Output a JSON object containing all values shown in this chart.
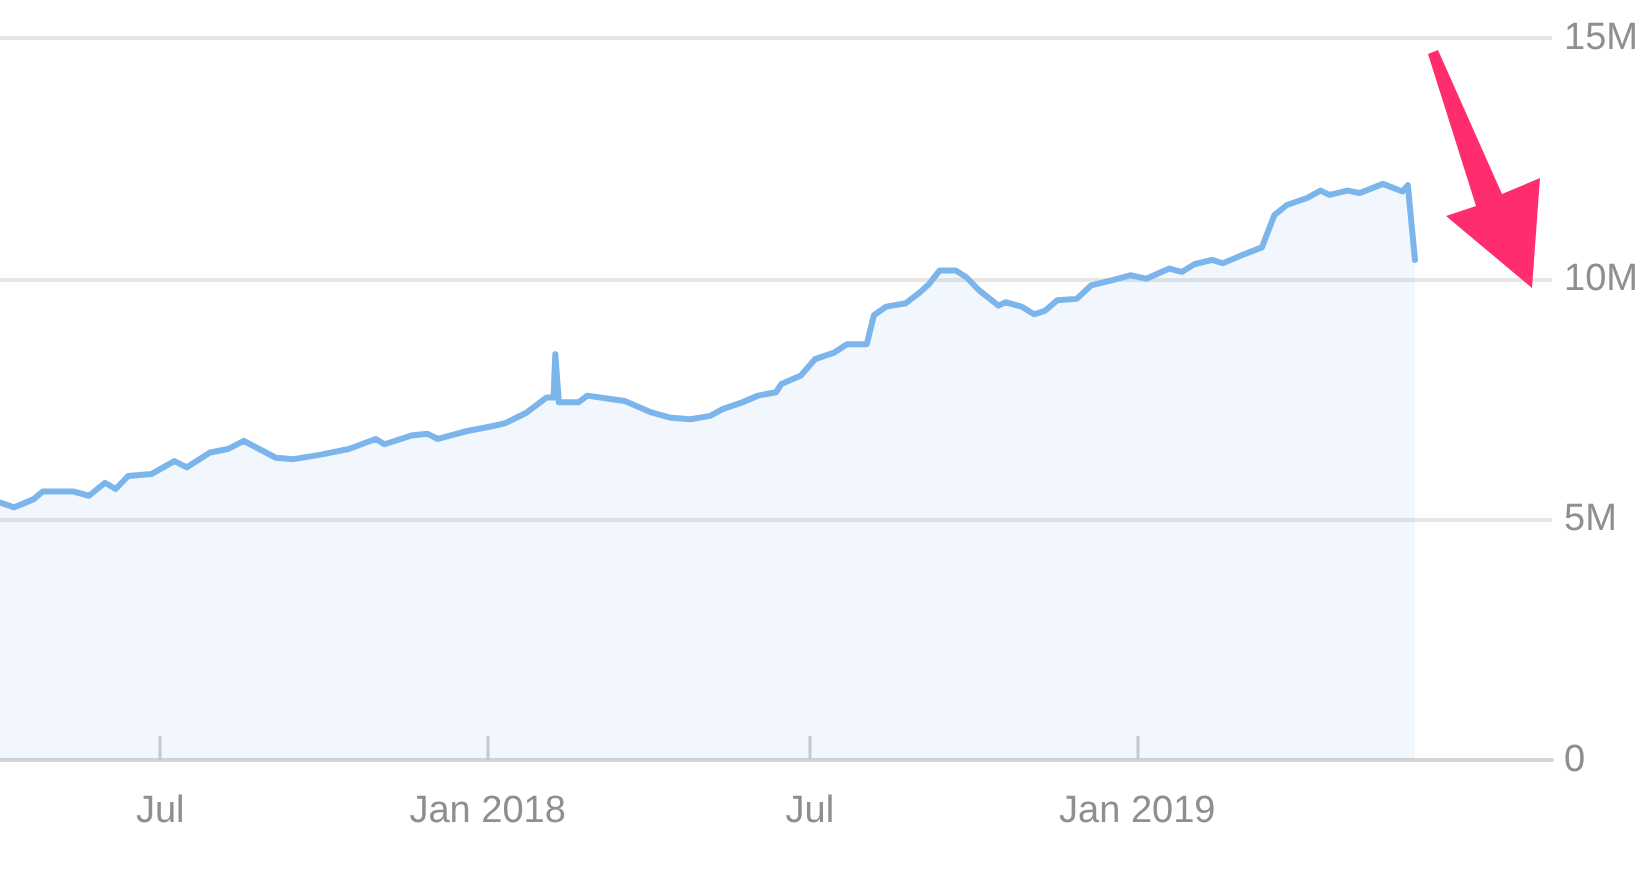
{
  "chart_data": {
    "type": "area",
    "color": "#7cb5ec",
    "marker": "none",
    "grid": "y",
    "x": [
      "2017-04-02",
      "2017-04-10",
      "2017-04-21",
      "2017-04-26",
      "2017-05-13",
      "2017-05-22",
      "2017-05-31",
      "2017-06-06",
      "2017-06-13",
      "2017-06-26",
      "2017-07-09",
      "2017-07-16",
      "2017-07-29",
      "2017-08-08",
      "2017-08-17",
      "2017-08-22",
      "2017-09-04",
      "2017-09-14",
      "2017-09-30",
      "2017-10-15",
      "2017-10-30",
      "2017-11-04",
      "2017-11-19",
      "2017-11-28",
      "2017-12-04",
      "2017-12-20",
      "2018-01-04",
      "2018-01-11",
      "2018-01-23",
      "2018-02-03",
      "2018-02-07",
      "2018-02-08",
      "2018-02-10",
      "2018-02-21",
      "2018-02-26",
      "2018-03-11",
      "2018-03-19",
      "2018-04-03",
      "2018-04-14",
      "2018-04-25",
      "2018-05-06",
      "2018-05-13",
      "2018-05-24",
      "2018-06-02",
      "2018-06-12",
      "2018-06-15",
      "2018-06-26",
      "2018-07-04",
      "2018-07-15",
      "2018-07-22",
      "2018-08-02",
      "2018-08-06",
      "2018-08-13",
      "2018-08-24",
      "2018-09-01",
      "2018-09-06",
      "2018-09-12",
      "2018-09-21",
      "2018-09-27",
      "2018-10-04",
      "2018-10-15",
      "2018-10-19",
      "2018-10-28",
      "2018-11-04",
      "2018-11-10",
      "2018-11-17",
      "2018-11-28",
      "2018-12-06",
      "2018-12-17",
      "2018-12-28",
      "2019-01-06",
      "2019-01-19",
      "2019-01-26",
      "2019-02-02",
      "2019-02-12",
      "2019-02-18",
      "2019-03-01",
      "2019-03-12",
      "2019-03-19",
      "2019-03-26",
      "2019-04-06",
      "2019-04-14",
      "2019-04-19",
      "2019-04-29",
      "2019-05-06",
      "2019-05-19",
      "2019-05-30",
      "2019-06-02",
      "2019-06-06"
    ],
    "values": [
      5350000,
      5250000,
      5420000,
      5580000,
      5580000,
      5490000,
      5760000,
      5630000,
      5900000,
      5940000,
      6210000,
      6080000,
      6390000,
      6460000,
      6630000,
      6530000,
      6280000,
      6250000,
      6350000,
      6460000,
      6670000,
      6560000,
      6740000,
      6780000,
      6670000,
      6830000,
      6940000,
      7000000,
      7220000,
      7530000,
      7530000,
      8430000,
      7430000,
      7430000,
      7570000,
      7500000,
      7460000,
      7220000,
      7110000,
      7080000,
      7150000,
      7290000,
      7430000,
      7570000,
      7640000,
      7810000,
      7990000,
      8330000,
      8470000,
      8640000,
      8640000,
      9240000,
      9420000,
      9490000,
      9720000,
      9890000,
      10170000,
      10170000,
      10030000,
      9760000,
      9440000,
      9510000,
      9420000,
      9260000,
      9330000,
      9550000,
      9580000,
      9860000,
      9960000,
      10070000,
      10000000,
      10210000,
      10140000,
      10300000,
      10390000,
      10320000,
      10490000,
      10650000,
      11320000,
      11530000,
      11670000,
      11830000,
      11740000,
      11830000,
      11780000,
      11970000,
      11810000,
      11940000,
      10390000
    ],
    "xlim": [
      "2017-04-02",
      "2019-08-22"
    ],
    "xticks": [
      {
        "value": "2017-07",
        "label": "Jul"
      },
      {
        "value": "2018-01",
        "label": "Jan 2018"
      },
      {
        "value": "2018-07",
        "label": "Jul"
      },
      {
        "value": "2019-01",
        "label": "Jan 2019"
      }
    ],
    "ylim": [
      0,
      15000000
    ],
    "yticks": [
      0,
      {
        "value": 5000000,
        "label": "5M"
      },
      {
        "value": 10000000,
        "label": "10M"
      },
      {
        "value": 15000000,
        "label": "15M"
      }
    ]
  }
}
